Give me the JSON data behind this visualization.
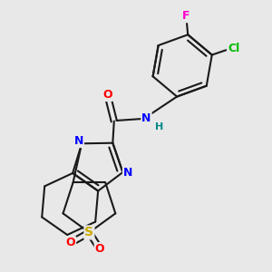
{
  "background_color": "#e8e8e8",
  "bond_color": "#1a1a1a",
  "atom_colors": {
    "O": "#ff0000",
    "N": "#0000ff",
    "S": "#ccaa00",
    "Cl": "#00bb00",
    "F": "#ff00cc",
    "H": "#008888",
    "C": "#1a1a1a"
  },
  "figsize": [
    3.0,
    3.0
  ],
  "dpi": 100
}
